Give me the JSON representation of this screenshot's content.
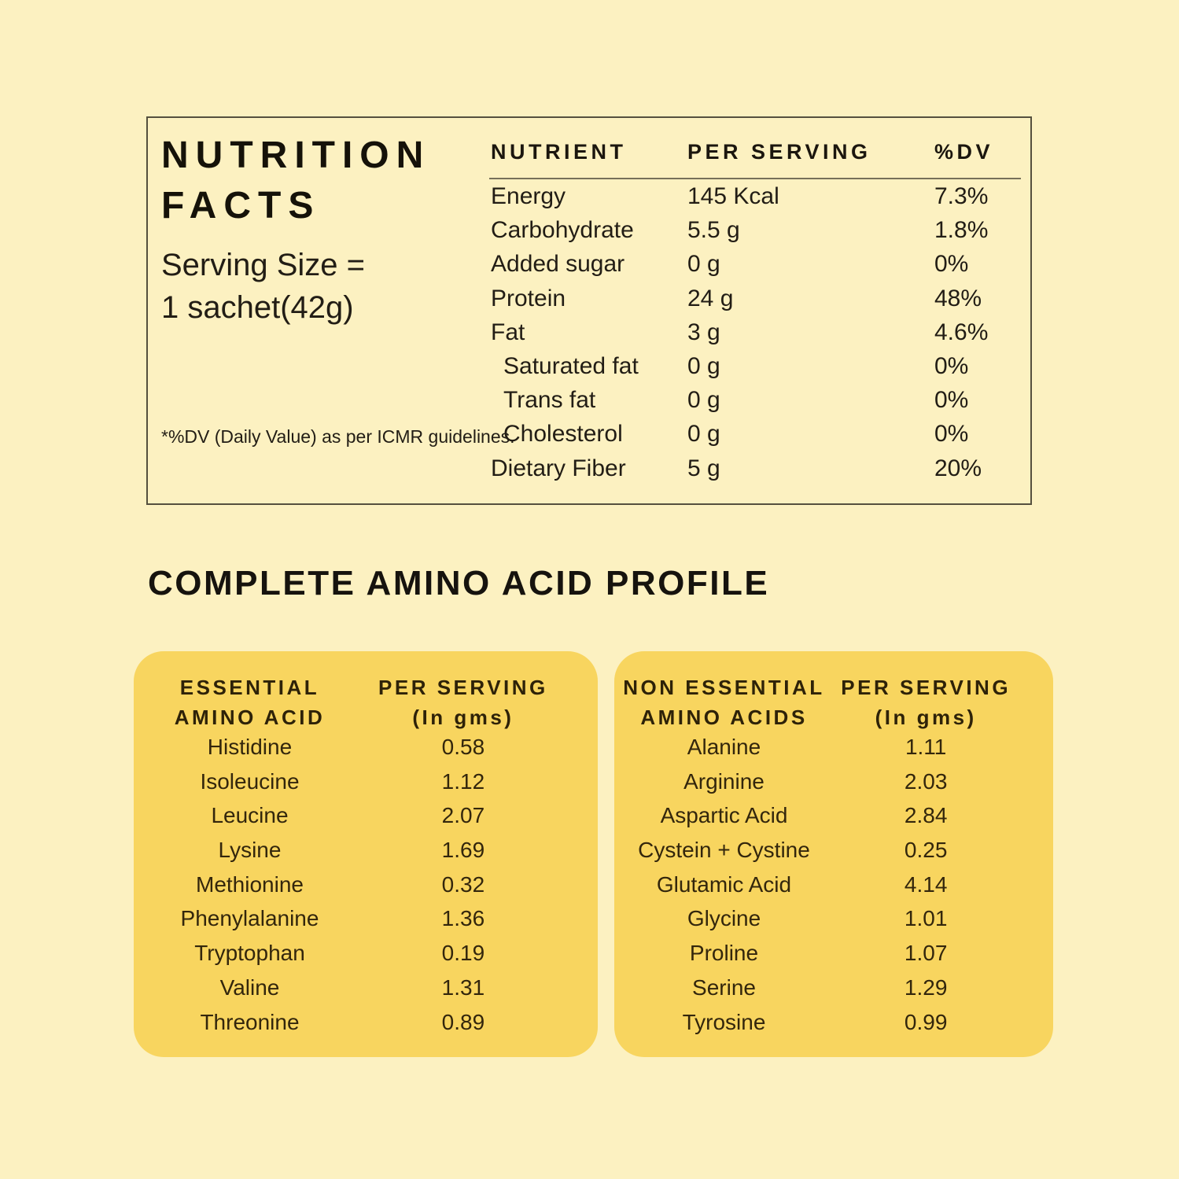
{
  "palette": {
    "page_background": "#FCF1C1",
    "card_background": "#F8D55F",
    "text_color": "#221D15",
    "box_border_color": "#55503E"
  },
  "nutrition_facts": {
    "title_line1": "NUTRITION",
    "title_line2": "FACTS",
    "serving_line1": "Serving Size =",
    "serving_line2": "1 sachet(42g)",
    "footnote": "*%DV (Daily Value) as per ICMR guidelines.",
    "columns": {
      "nutrient": "NUTRIENT",
      "per_serving": "PER SERVING",
      "dv": "%DV"
    },
    "rows": [
      {
        "name": "Energy",
        "per_serving": "145 Kcal",
        "dv": "7.3%"
      },
      {
        "name": "Carbohydrate",
        "per_serving": "5.5 g",
        "dv": "1.8%"
      },
      {
        "name": "Added sugar",
        "per_serving": "0 g",
        "dv": "0%"
      },
      {
        "name": "Protein",
        "per_serving": "24 g",
        "dv": "48%"
      },
      {
        "name": "Fat",
        "per_serving": "3 g",
        "dv": "4.6%"
      },
      {
        "name": "Saturated fat",
        "per_serving": "0 g",
        "dv": "0%"
      },
      {
        "name": "Trans fat",
        "per_serving": "0 g",
        "dv": "0%"
      },
      {
        "name": "Cholesterol",
        "per_serving": "0 g",
        "dv": "0%"
      },
      {
        "name": "Dietary Fiber",
        "per_serving": "5 g",
        "dv": "20%"
      }
    ]
  },
  "amino_profile": {
    "heading": "COMPLETE AMINO ACID PROFILE",
    "essential": {
      "col1_line1": "ESSENTIAL",
      "col1_line2": "AMINO ACID",
      "col2_line1": "PER SERVING",
      "col2_line2": "(In gms)",
      "rows": [
        {
          "name": "Histidine",
          "value": "0.58"
        },
        {
          "name": "Isoleucine",
          "value": "1.12"
        },
        {
          "name": "Leucine",
          "value": "2.07"
        },
        {
          "name": "Lysine",
          "value": "1.69"
        },
        {
          "name": "Methionine",
          "value": "0.32"
        },
        {
          "name": "Phenylalanine",
          "value": "1.36"
        },
        {
          "name": "Tryptophan",
          "value": "0.19"
        },
        {
          "name": "Valine",
          "value": "1.31"
        },
        {
          "name": "Threonine",
          "value": "0.89"
        }
      ]
    },
    "non_essential": {
      "col1_line1": "NON ESSENTIAL",
      "col1_line2": "AMINO ACIDS",
      "col2_line1": "PER SERVING",
      "col2_line2": "(In gms)",
      "rows": [
        {
          "name": "Alanine",
          "value": "1.11"
        },
        {
          "name": "Arginine",
          "value": "2.03"
        },
        {
          "name": "Aspartic Acid",
          "value": "2.84"
        },
        {
          "name": "Cystein + Cystine",
          "value": "0.25"
        },
        {
          "name": "Glutamic Acid",
          "value": "4.14"
        },
        {
          "name": "Glycine",
          "value": "1.01"
        },
        {
          "name": "Proline",
          "value": "1.07"
        },
        {
          "name": "Serine",
          "value": "1.29"
        },
        {
          "name": "Tyrosine",
          "value": "0.99"
        }
      ]
    }
  }
}
